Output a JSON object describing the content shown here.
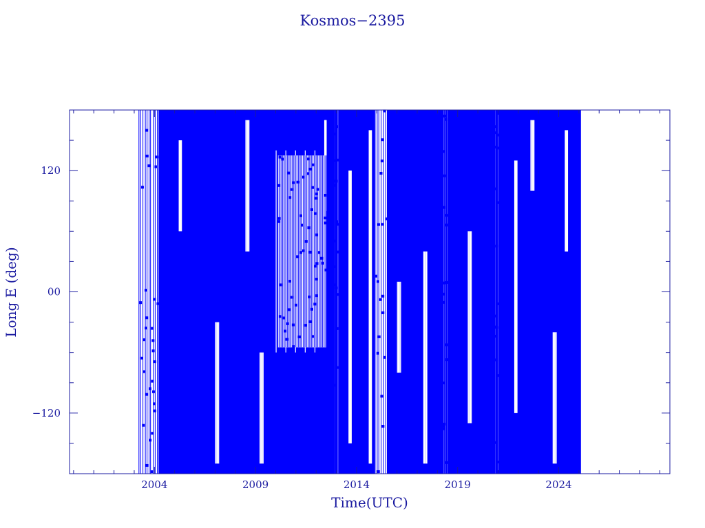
{
  "chart_data": {
    "type": "scatter",
    "title": "Kosmos−2395",
    "xlabel": "Time(UTC)",
    "ylabel": "Long E (deg)",
    "xlim": [
      1999.8,
      2029.5
    ],
    "ylim": [
      -180,
      180
    ],
    "x_ticks": [
      2004,
      2009,
      2014,
      2019,
      2024
    ],
    "x_tick_labels": [
      "2004",
      "2009",
      "2014",
      "2019",
      "2024"
    ],
    "y_ticks": [
      -120,
      0,
      120
    ],
    "y_tick_labels": [
      "−120",
      "00",
      "120"
    ],
    "data_start": 2003.2,
    "data_end": 2025.1,
    "series": [
      {
        "color": "#0000ff",
        "dense_intervals": [
          [
            2004.2,
            2012.9
          ],
          [
            2013.1,
            2014.9
          ],
          [
            2015.5,
            2018.3
          ],
          [
            2018.5,
            2020.8
          ],
          [
            2021.0,
            2025.1
          ]
        ],
        "sparse_intervals": [
          [
            2003.2,
            2004.2
          ],
          [
            2012.9,
            2013.1
          ],
          [
            2014.9,
            2015.5
          ],
          [
            2018.3,
            2018.5
          ],
          [
            2020.8,
            2021.0
          ]
        ]
      }
    ],
    "grid": false,
    "legend": "none"
  },
  "colors": {
    "axis": "#1a1aa0",
    "data": "#0000ff",
    "background": "#ffffff"
  }
}
